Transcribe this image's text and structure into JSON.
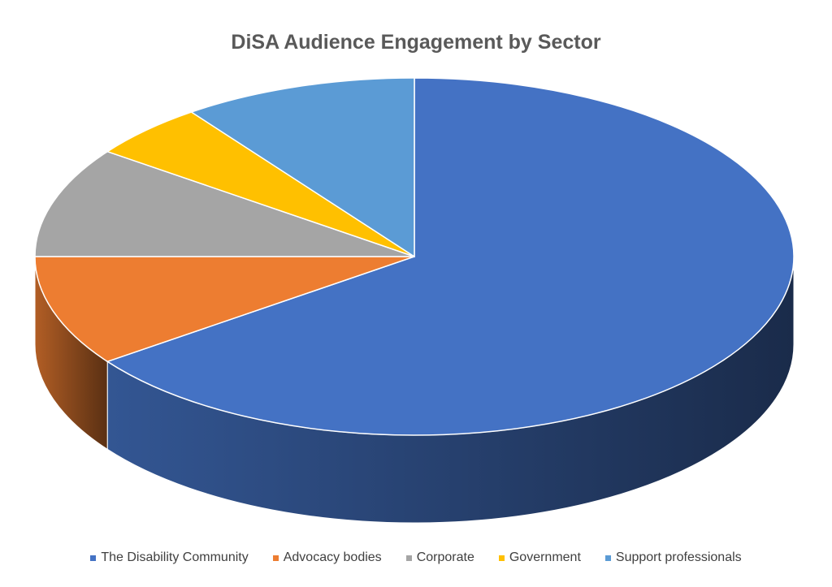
{
  "chart_data": {
    "type": "pie",
    "style": "3d",
    "title": "DiSA Audience Engagement by Sector",
    "categories": [
      "The Disability Community",
      "Advocacy bodies",
      "Corporate",
      "Government",
      "Support professionals"
    ],
    "values": [
      65,
      10,
      10,
      5,
      10
    ],
    "unit": "percent (estimated)",
    "colors": [
      "#4472C4",
      "#ED7D31",
      "#A5A5A5",
      "#FFC000",
      "#5B9BD5"
    ],
    "legend_position": "bottom",
    "start_angle": "top, clockwise"
  }
}
